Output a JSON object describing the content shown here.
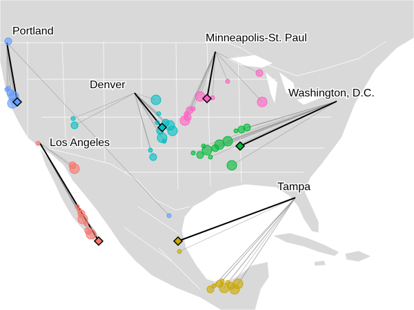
{
  "labels": {
    "portland": "Portland",
    "minneapolis": "Minneapolis-St. Paul",
    "denver": "Denver",
    "washington": "Washington, D.C.",
    "los_angeles": "Los Angeles",
    "tampa": "Tampa"
  }
}
